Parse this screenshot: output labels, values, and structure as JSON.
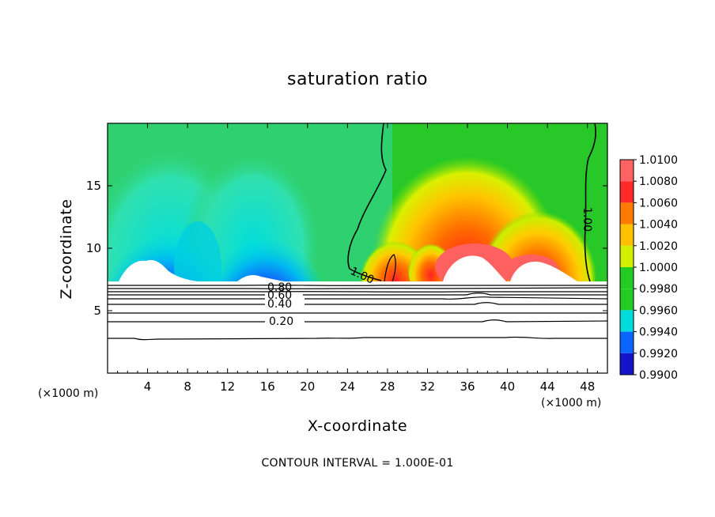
{
  "chart_data": {
    "type": "heatmap",
    "title": "saturation ratio",
    "xlabel": "X-coordinate",
    "ylabel": "Z-coordinate",
    "x_unit_label": "(×1000 m)",
    "xlim": [
      0,
      50
    ],
    "ylim": [
      0,
      20
    ],
    "x_ticks": [
      4,
      8,
      12,
      16,
      20,
      24,
      28,
      32,
      36,
      40,
      44,
      48
    ],
    "y_ticks": [
      5,
      10,
      15
    ],
    "colorbar": {
      "levels": [
        "1.0100",
        "1.0080",
        "1.0060",
        "1.0040",
        "1.0020",
        "1.0000",
        "0.9980",
        "0.9960",
        "0.9940",
        "0.9920",
        "0.9900"
      ],
      "colors": [
        "#ff6464",
        "#ff2a2a",
        "#ff7a00",
        "#ffc000",
        "#d4ee00",
        "#22cc22",
        "#22cc22",
        "#00dcdc",
        "#0a64ff",
        "#1414c8",
        "#6a0090"
      ]
    },
    "contour_labels": [
      "0.80",
      "0.60",
      "0.40",
      "0.20",
      "1.00",
      "1.00"
    ],
    "contour_interval_text": "CONTOUR INTERVAL = 1.000E-01"
  }
}
